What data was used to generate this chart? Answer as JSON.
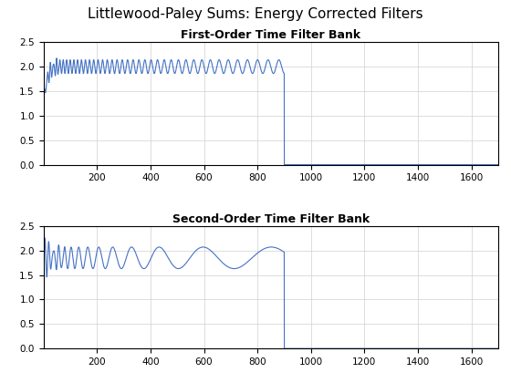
{
  "fig_title": "Littlewood-Paley Sums: Energy Corrected Filters",
  "fig_title_fontsize": 11,
  "subplot1_title": "First-Order Time Filter Bank",
  "subplot2_title": "Second-Order Time Filter Bank",
  "subplot_title_fontsize": 9,
  "line_color": "#4472C4",
  "line_width": 0.8,
  "xlim": [
    0,
    1700
  ],
  "ylim": [
    0,
    2.5
  ],
  "xticks": [
    200,
    400,
    600,
    800,
    1000,
    1200,
    1400,
    1600
  ],
  "yticks": [
    0,
    0.5,
    1.0,
    1.5,
    2.0,
    2.5
  ],
  "grid": true,
  "grid_color": "#d0d0d0",
  "grid_linewidth": 0.5,
  "background_color": "#ffffff",
  "cutoff": 900,
  "N": 1700
}
